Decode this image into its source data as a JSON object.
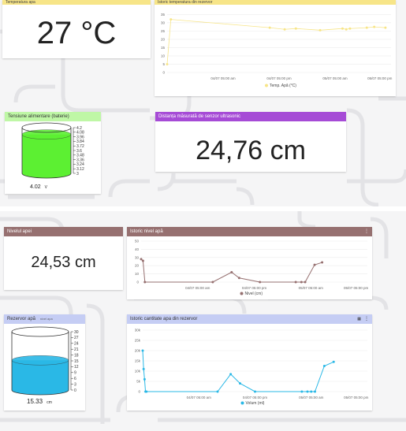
{
  "colors": {
    "yellow": "#f7e588",
    "green_header": "#bff7a6",
    "purple": "#a64bd6",
    "brown": "#967070",
    "blue_header": "#c5cdf4",
    "battery": "#5cf032",
    "water": "#2ab8e6"
  },
  "top": {
    "temp_header": "Temperatura apa",
    "temp_value": "27 °C",
    "temp_chart_header": "Istoric temperatura din rezervor",
    "battery_header": "Tensiune alimentare (baterie)",
    "battery_value": "4.02",
    "battery_unit": "V",
    "distance_header": "Distanța măsurată de senzor ultrasonic",
    "distance_value": "24,76 cm"
  },
  "bottom": {
    "level_header": "Nivelul apei",
    "level_value": "24,53 cm",
    "level_chart_header": "Istoric nivel apă",
    "reservoir_header": "Rezervor apă",
    "reservoir_subheader": "nivel apa",
    "reservoir_value": "15.33",
    "reservoir_unit": "cm",
    "volume_chart_header": "Istoric cantitate apa din rezervor"
  },
  "chart_data": [
    {
      "type": "line",
      "title": "",
      "ticks_y": [
        "0",
        "5",
        "10",
        "15",
        "20",
        "25",
        "30",
        "35"
      ],
      "ticks_x": [
        "04/07 05:00 am",
        "04/07 05:00 pm",
        "05/07 05:00 am",
        "05/07 05:00 pm"
      ],
      "series": [
        {
          "name": "Temp. Apă (°C)",
          "color": "#f7e588",
          "x": [
            0.0,
            0.02,
            0.55,
            0.63,
            0.69,
            0.82,
            0.94,
            0.96,
            0.98,
            1.07,
            1.11,
            1.17
          ],
          "values": [
            5,
            32,
            27,
            26,
            26.5,
            25.5,
            26.5,
            26,
            26.5,
            27,
            27.5,
            27
          ]
        }
      ],
      "ylim": [
        0,
        38
      ]
    },
    {
      "type": "line",
      "title": "",
      "ticks_y": [
        "0",
        "10",
        "20",
        "30",
        "40",
        "50"
      ],
      "ticks_x": [
        "04/07 05:00 am",
        "04/07 05:00 pm",
        "05/07 05:00 am",
        "05/07 05:00 pm"
      ],
      "series": [
        {
          "name": "Nivel (cm)",
          "color": "#967070",
          "x": [
            0.0,
            0.01,
            0.02,
            0.38,
            0.48,
            0.52,
            0.63,
            0.82,
            0.85,
            0.87,
            0.92,
            0.96
          ],
          "values": [
            28,
            26,
            0,
            0,
            12,
            5,
            0,
            0,
            0,
            0,
            21,
            24
          ]
        }
      ],
      "ylim": [
        0,
        50
      ]
    },
    {
      "type": "line",
      "title": "",
      "ticks_y": [
        "0",
        "5k",
        "10k",
        "15k",
        "20k",
        "25k",
        "30k"
      ],
      "ticks_x": [
        "04/07 05:00 am",
        "04/07 05:00 pm",
        "05/07 05:00 am",
        "05/07 05:00 pm"
      ],
      "series": [
        {
          "name": "Volum (ml)",
          "color": "#2ab8e6",
          "x": [
            0.0,
            0.005,
            0.01,
            0.015,
            0.02,
            0.4,
            0.47,
            0.52,
            0.6,
            0.85,
            0.88,
            0.9,
            0.92,
            0.97,
            1.02
          ],
          "values": [
            20000,
            11000,
            6000,
            0,
            0,
            0,
            8500,
            4000,
            0,
            0,
            0,
            0,
            0,
            12500,
            14500
          ]
        }
      ],
      "ylim": [
        0,
        30000
      ]
    }
  ],
  "gauges": {
    "battery": {
      "ticks": [
        "4.2",
        "4.08",
        "3.96",
        "3.84",
        "3.72",
        "3.6",
        "3.48",
        "3.36",
        "3.24",
        "3.12",
        "3"
      ],
      "fill_fraction": 0.85
    },
    "reservoir": {
      "ticks": [
        "30",
        "27",
        "24",
        "21",
        "18",
        "15",
        "12",
        "9",
        "6",
        "3",
        "0"
      ],
      "fill_fraction": 0.51
    }
  }
}
